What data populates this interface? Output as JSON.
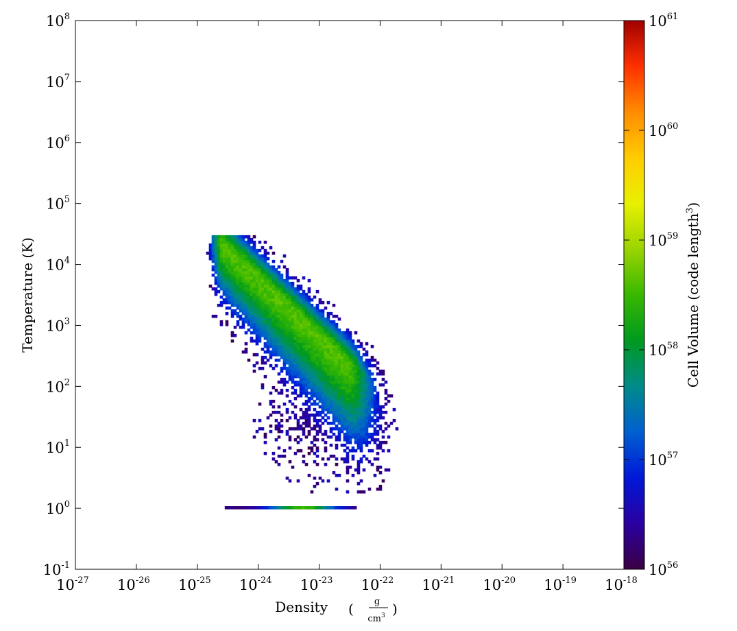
{
  "chart_data": {
    "type": "heatmap",
    "title": "",
    "xlabel": "Density",
    "xlabel_unit_numerator": "g",
    "xlabel_unit_denominator": "cm",
    "xlabel_unit_denominator_exp": "3",
    "ylabel": "Temperature  (K)",
    "colorbar_label": "Cell Volume  (code length",
    "colorbar_label_exp": "3",
    "colorbar_label_close": ")",
    "x_scale": "log",
    "y_scale": "log",
    "color_scale": "log",
    "xlim": [
      1e-27,
      1e-18
    ],
    "ylim": [
      0.1,
      100000000.0
    ],
    "clim": [
      1e+56,
      1e+61
    ],
    "colormap": "spectral",
    "x_ticks": [
      {
        "base": "10",
        "exp": "-27"
      },
      {
        "base": "10",
        "exp": "-26"
      },
      {
        "base": "10",
        "exp": "-25"
      },
      {
        "base": "10",
        "exp": "-24"
      },
      {
        "base": "10",
        "exp": "-23"
      },
      {
        "base": "10",
        "exp": "-22"
      },
      {
        "base": "10",
        "exp": "-21"
      },
      {
        "base": "10",
        "exp": "-20"
      },
      {
        "base": "10",
        "exp": "-19"
      },
      {
        "base": "10",
        "exp": "-18"
      }
    ],
    "y_ticks": [
      {
        "base": "10",
        "exp": "-1"
      },
      {
        "base": "10",
        "exp": "0"
      },
      {
        "base": "10",
        "exp": "1"
      },
      {
        "base": "10",
        "exp": "2"
      },
      {
        "base": "10",
        "exp": "3"
      },
      {
        "base": "10",
        "exp": "4"
      },
      {
        "base": "10",
        "exp": "5"
      },
      {
        "base": "10",
        "exp": "6"
      },
      {
        "base": "10",
        "exp": "7"
      },
      {
        "base": "10",
        "exp": "8"
      }
    ],
    "colorbar_ticks": [
      {
        "base": "10",
        "exp": "56"
      },
      {
        "base": "10",
        "exp": "57"
      },
      {
        "base": "10",
        "exp": "58"
      },
      {
        "base": "10",
        "exp": "59"
      },
      {
        "base": "10",
        "exp": "60"
      },
      {
        "base": "10",
        "exp": "61"
      }
    ],
    "colormap_stops": [
      "#3a0044",
      "#2a00a0",
      "#0018d8",
      "#0060d0",
      "#008a8a",
      "#009a20",
      "#38b800",
      "#9ad400",
      "#e8f000",
      "#ffcc00",
      "#ff8c00",
      "#ff3000",
      "#a00000"
    ],
    "density_regions": [
      {
        "x": [
          -24.6,
          -22.4
        ],
        "y": [
          2.0,
          4.3
        ],
        "peak": 58.55,
        "note": "main diagonal band"
      },
      {
        "x": [
          -24.6,
          -22.4
        ],
        "y": [
          0.05
        ],
        "peak": 58.0,
        "note": "T floor strip"
      },
      {
        "x": [
          -24.3,
          -21.5
        ],
        "y": [
          0.3,
          2.0
        ],
        "peak": 56.4,
        "note": "sparse low-T scatter"
      }
    ]
  }
}
